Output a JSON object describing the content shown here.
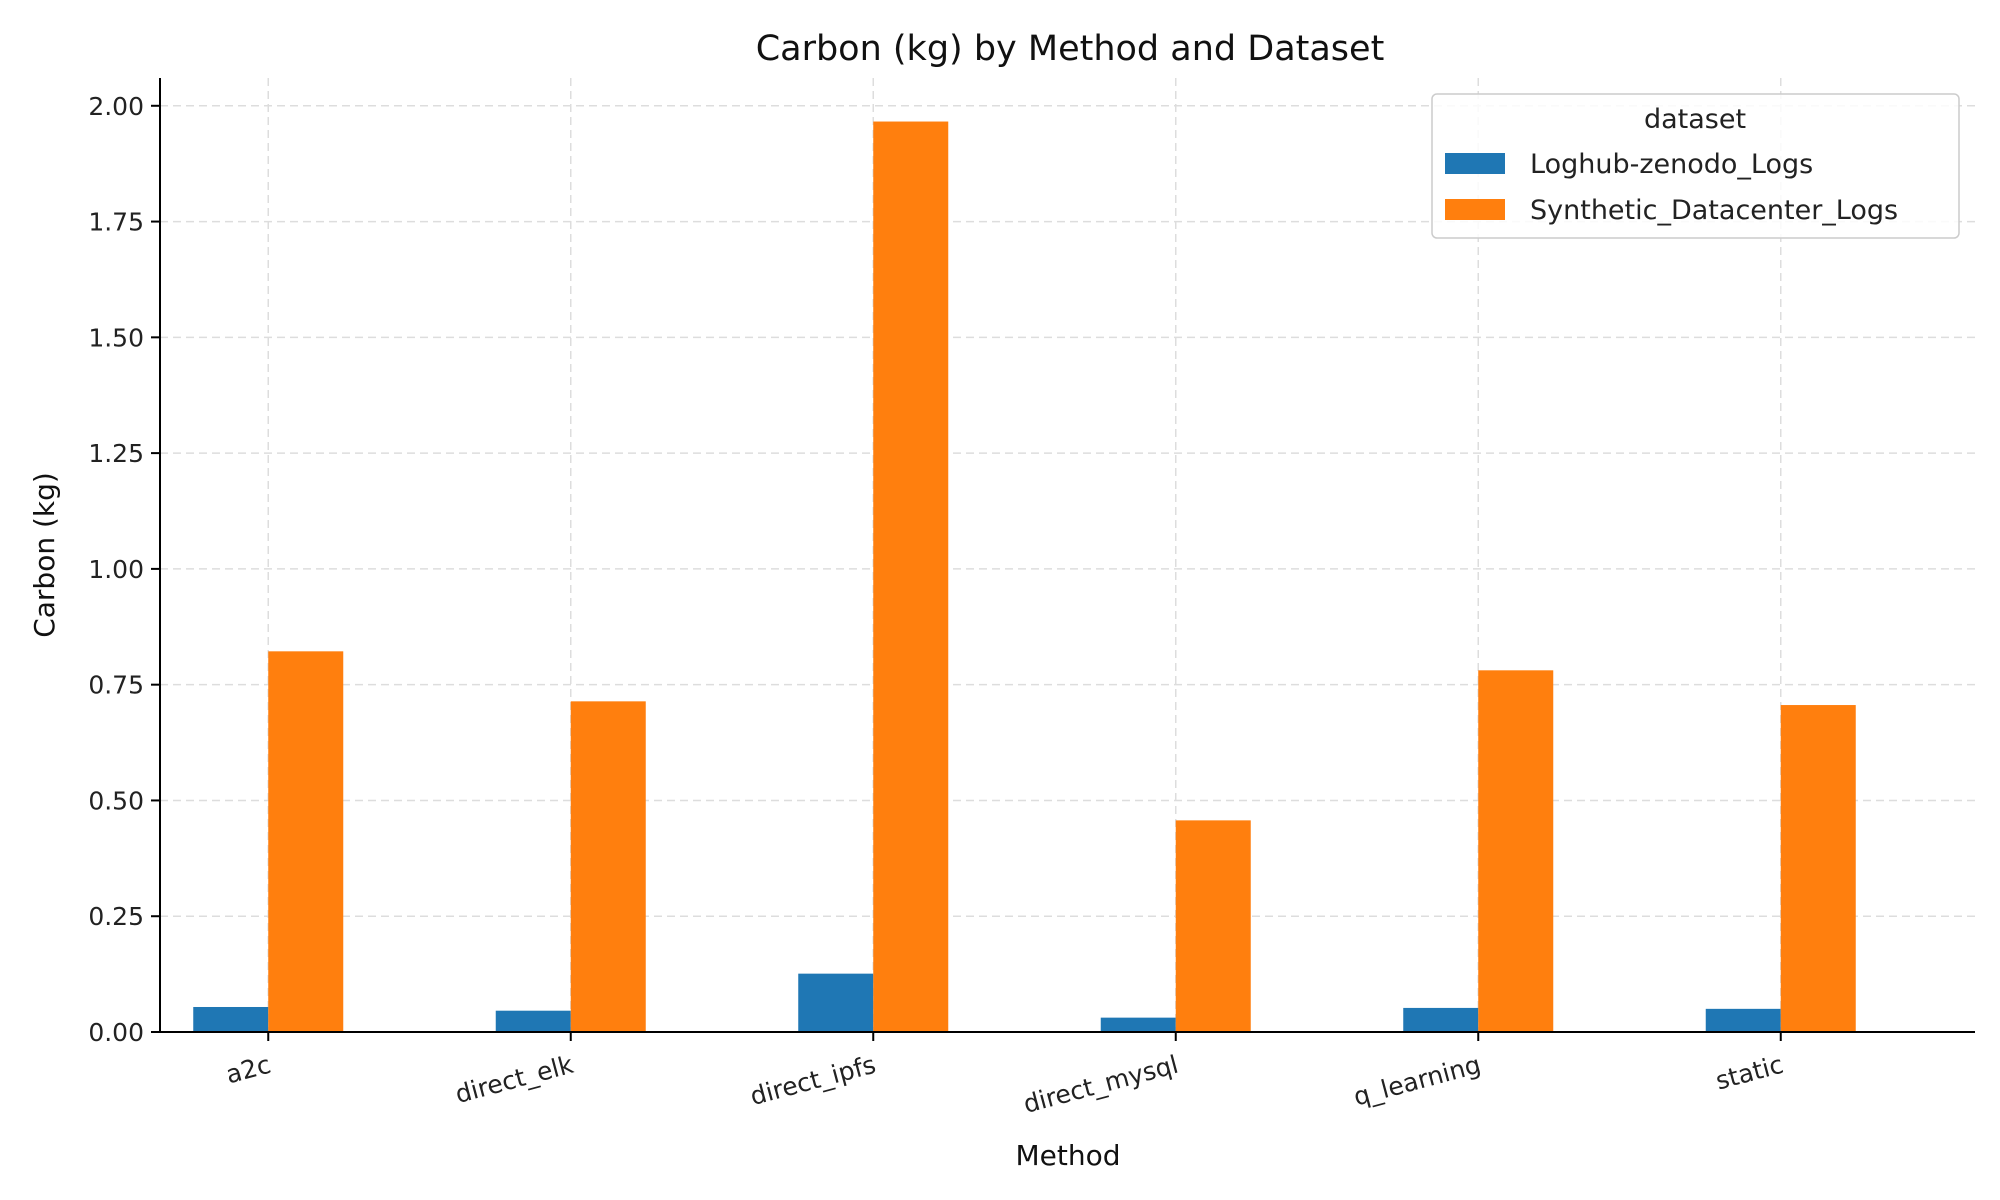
{
  "chart_data": {
    "type": "bar",
    "title": "Carbon (kg) by Method and Dataset",
    "xlabel": "Method",
    "ylabel": "Carbon (kg)",
    "ylim": [
      0,
      2.06
    ],
    "yticks": [
      0,
      0.25,
      0.5,
      0.75,
      1.0,
      1.25,
      1.5,
      1.75,
      2.0
    ],
    "ytick_labels": [
      "0.00",
      "0.25",
      "0.50",
      "0.75",
      "1.00",
      "1.25",
      "1.50",
      "1.75",
      "2.00"
    ],
    "grid": true,
    "categories": [
      "a2c",
      "direct_elk",
      "direct_ipfs",
      "direct_mysql",
      "q_learning",
      "static"
    ],
    "series": [
      {
        "name": "Loghub-zenodo_Logs",
        "color": "#1f77b4",
        "values": [
          0.054,
          0.046,
          0.126,
          0.031,
          0.052,
          0.05
        ]
      },
      {
        "name": "Synthetic_Datacenter_Logs",
        "color": "#ff7f0e",
        "values": [
          0.822,
          0.714,
          1.966,
          0.457,
          0.781,
          0.706
        ]
      }
    ],
    "legend": {
      "title": "dataset",
      "position": "top-right"
    }
  }
}
